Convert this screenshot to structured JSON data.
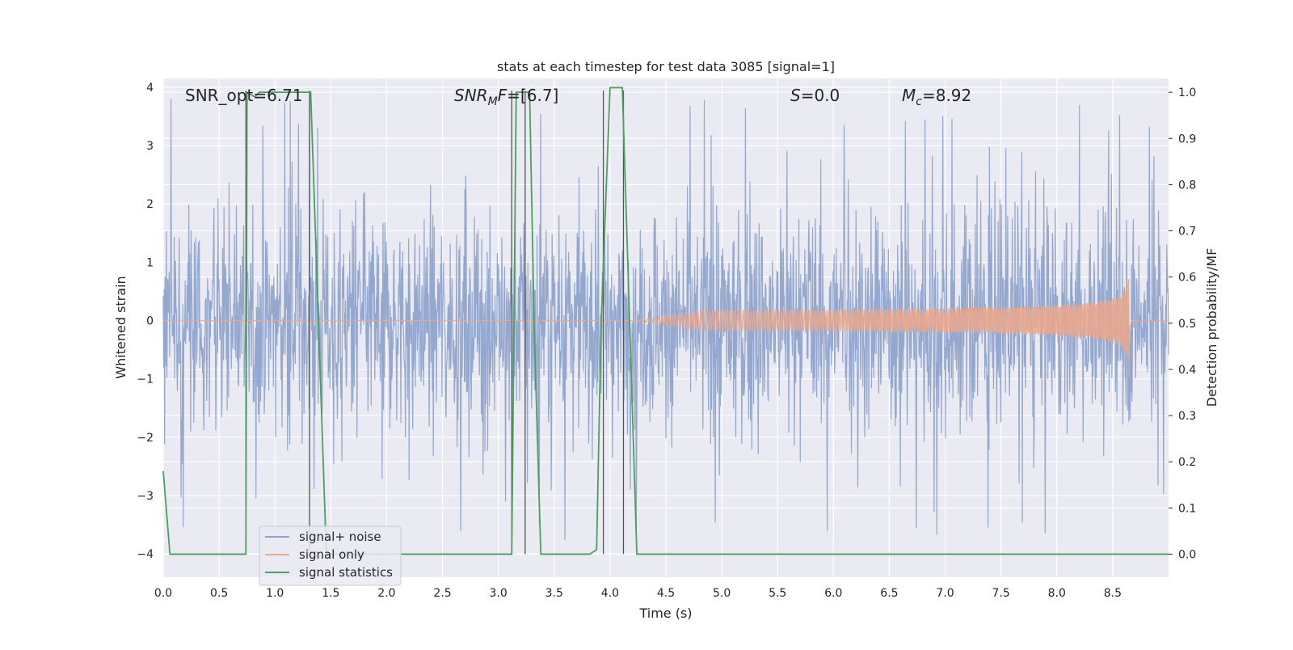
{
  "chart_data": {
    "type": "line",
    "title": "stats at each timestep for test data 3085 [signal=1]",
    "xlabel": "Time (s)",
    "ylabel_left": "Whitened strain",
    "ylabel_right": "Detection probability/MF",
    "xlim": [
      0,
      9
    ],
    "ylim_left": [
      -4.4,
      4.15
    ],
    "ylim_right": [
      -0.05,
      1.03
    ],
    "x_ticks": [
      "0.0",
      "0.5",
      "1.0",
      "1.5",
      "2.0",
      "2.5",
      "3.0",
      "3.5",
      "4.0",
      "4.5",
      "5.0",
      "5.5",
      "6.0",
      "6.5",
      "7.0",
      "7.5",
      "8.0",
      "8.5"
    ],
    "y_ticks_left": [
      "4",
      "3",
      "2",
      "1",
      "0",
      "−1",
      "−2",
      "−3",
      "−4"
    ],
    "y_ticks_right": [
      "1.0",
      "0.9",
      "0.8",
      "0.7",
      "0.6",
      "0.5",
      "0.4",
      "0.3",
      "0.2",
      "0.1",
      "0.0"
    ],
    "annotations": {
      "snr_opt": "SNR_opt=6.71",
      "snr_mf_main": "SNR",
      "snr_mf_sub": "M",
      "snr_mf_rest": "F",
      "snr_mf_value": "=[6.7]",
      "s_label": "S",
      "s_value": "=0.0",
      "mc_main": "M",
      "mc_sub": "c",
      "mc_value": "=8.92"
    },
    "legend": {
      "position": "lower-left",
      "entries": [
        "signal+ noise",
        "signal only",
        "signal statistics"
      ]
    },
    "series": [
      {
        "name": "signal+ noise",
        "axis": "left",
        "color": "#8fa3cb",
        "description_values": "noise envelope roughly ±1.5 with peaks to ±3.8",
        "envelope": 1.45,
        "peak": 3.8
      },
      {
        "name": "signal only",
        "axis": "left",
        "color": "#e8a98e",
        "chirp_start": 4.2,
        "chirp_end": 8.65,
        "peak_amplitude": 0.95
      },
      {
        "name": "signal statistics",
        "axis": "right",
        "color": "#4aa05d",
        "x": [
          0.0,
          0.06,
          0.1,
          0.74,
          0.75,
          0.82,
          0.86,
          1.0,
          1.32,
          1.46,
          1.6,
          3.12,
          3.16,
          3.2,
          3.28,
          3.32,
          3.38,
          3.42,
          3.82,
          3.88,
          3.92,
          4.0,
          4.11,
          4.24,
          4.3,
          9.0
        ],
        "y": [
          0.18,
          0.0,
          0.0,
          0.0,
          1.0,
          0.99,
          1.0,
          1.0,
          1.0,
          0.0,
          0.0,
          0.0,
          1.0,
          1.0,
          1.0,
          0.5,
          0.0,
          0.0,
          0.0,
          0.01,
          0.5,
          1.01,
          1.01,
          0.0,
          0.0,
          0.0
        ]
      }
    ],
    "vertical_markers": [
      0.74,
      1.31,
      3.12,
      3.24,
      3.94,
      4.12
    ],
    "colors": {
      "plot_bg": "#eaeaf2",
      "grid": "#ffffff",
      "marker": "#555555"
    }
  }
}
